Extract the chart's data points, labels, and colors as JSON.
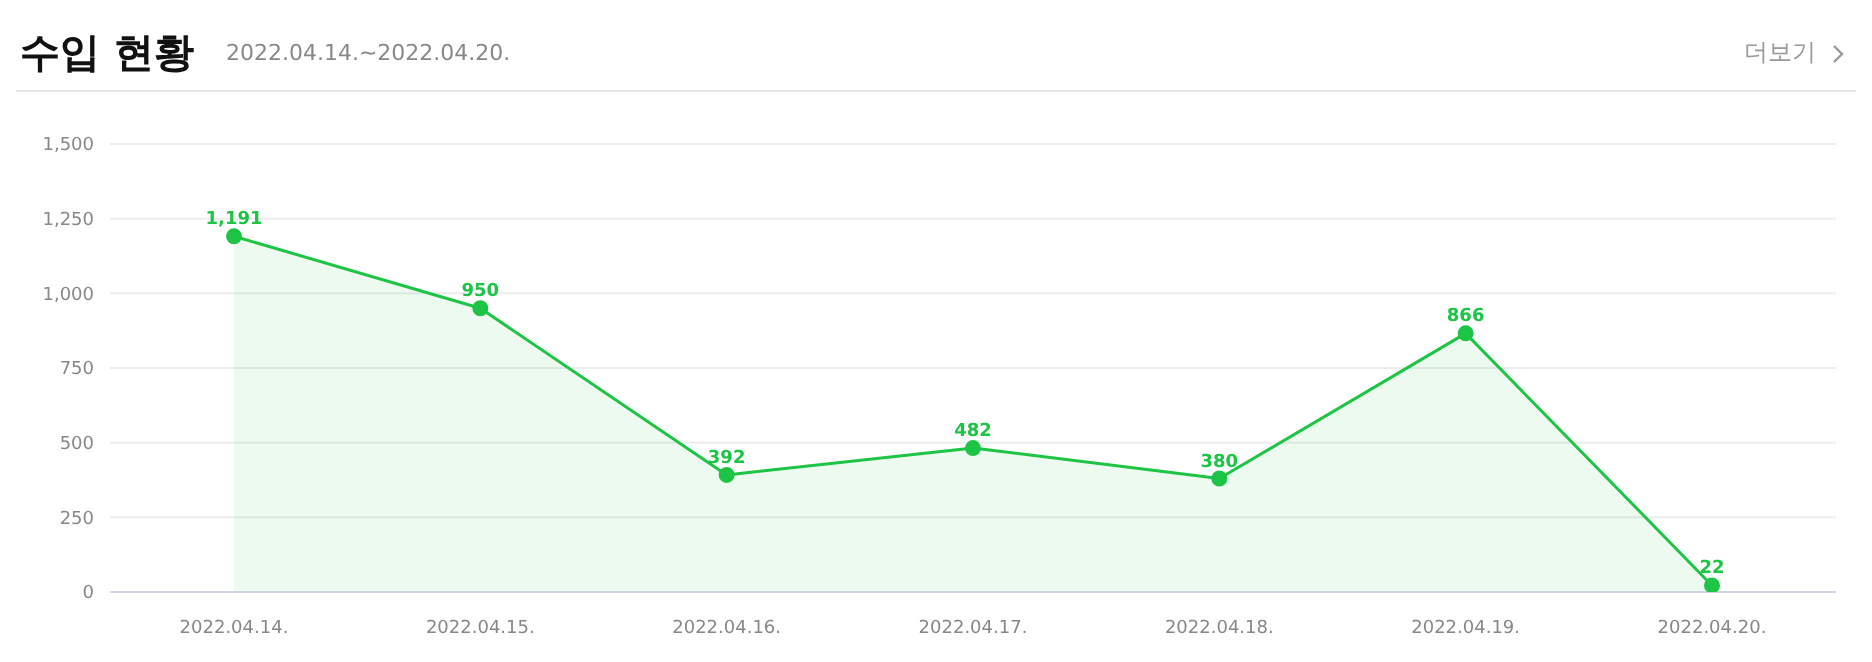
{
  "chart_data": {
    "type": "area",
    "title": "수입 현황",
    "subtitle": "2022.04.14.~2022.04.20.",
    "annotations": [
      "더보기"
    ],
    "categories": [
      "2022.04.14.",
      "2022.04.15.",
      "2022.04.16.",
      "2022.04.17.",
      "2022.04.18.",
      "2022.04.19.",
      "2022.04.20."
    ],
    "series": [
      {
        "color": "#1dc445",
        "values": [
          1191,
          950,
          392,
          482,
          380,
          866,
          22
        ],
        "value_labels": [
          "1,191",
          "950",
          "392",
          "482",
          "380",
          "866",
          "22"
        ]
      }
    ],
    "ylim": [
      0,
      1500
    ],
    "yticks": [
      0,
      250,
      500,
      750,
      {
        "value": 1000,
        "label": "1,000"
      },
      {
        "value": 1250,
        "label": "1,250"
      },
      {
        "value": 1500,
        "label": "1,500"
      }
    ],
    "grid": "y",
    "legend": false,
    "marker": "circle"
  }
}
